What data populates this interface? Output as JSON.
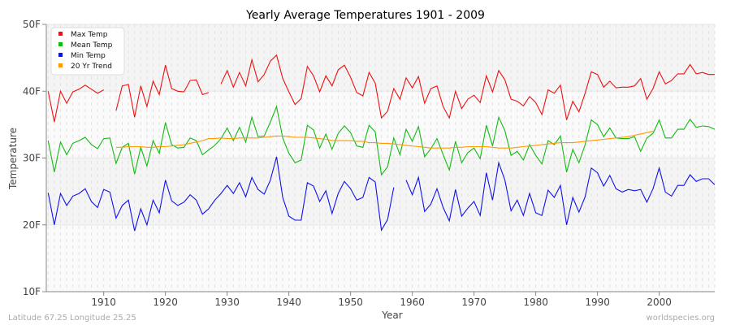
{
  "chart_data": {
    "type": "line",
    "title": "Yearly Average Temperatures 1901 - 2009",
    "xlabel": "Year",
    "ylabel": "Temperature",
    "xlim": [
      1900.7,
      2009
    ],
    "ylim": [
      10,
      50
    ],
    "yticks": [
      {
        "v": 10,
        "label": "10F"
      },
      {
        "v": 20,
        "label": "20F"
      },
      {
        "v": 30,
        "label": "30F"
      },
      {
        "v": 40,
        "label": "40F"
      },
      {
        "v": 50,
        "label": "50F"
      }
    ],
    "xticks": [
      1910,
      1920,
      1930,
      1940,
      1950,
      1960,
      1970,
      1980,
      1990,
      2000
    ],
    "grid": true,
    "legend_position": "top-left",
    "x_start": 1901,
    "series": [
      {
        "name": "Max Temp",
        "color": "#ee1111",
        "values": [
          40.0,
          35.4,
          40.0,
          38.2,
          39.9,
          40.3,
          40.9,
          40.3,
          39.7,
          40.2,
          null,
          37.1,
          40.8,
          41.0,
          36.1,
          40.8,
          37.7,
          41.5,
          39.5,
          43.9,
          40.4,
          40.0,
          39.9,
          41.6,
          41.7,
          39.5,
          39.8,
          null,
          41.1,
          43.1,
          40.6,
          42.8,
          40.8,
          44.7,
          41.4,
          42.5,
          44.5,
          45.4,
          41.9,
          39.9,
          38.0,
          38.9,
          43.7,
          42.3,
          39.9,
          42.3,
          40.8,
          43.2,
          43.9,
          42.1,
          39.8,
          39.3,
          42.8,
          41.2,
          36.0,
          37.0,
          40.4,
          38.8,
          42.0,
          40.5,
          42.2,
          38.2,
          40.4,
          40.8,
          37.7,
          36.0,
          40.0,
          37.4,
          38.8,
          39.4,
          38.3,
          42.3,
          39.9,
          43.1,
          41.7,
          38.8,
          38.5,
          37.8,
          39.2,
          38.3,
          36.5,
          40.2,
          39.7,
          40.9,
          35.7,
          38.5,
          36.9,
          39.7,
          42.9,
          42.5,
          40.6,
          41.5,
          40.5,
          40.6,
          40.6,
          40.8,
          41.9,
          38.8,
          40.4,
          42.9,
          41.1,
          41.6,
          42.6,
          42.6,
          44.0,
          42.6,
          42.8,
          42.5,
          42.5
        ]
      },
      {
        "name": "Mean Temp",
        "color": "#11bb11",
        "values": [
          32.6,
          27.9,
          32.4,
          30.5,
          32.2,
          32.6,
          33.1,
          32.0,
          31.4,
          32.9,
          33.0,
          29.2,
          31.6,
          32.2,
          27.6,
          31.6,
          28.8,
          32.6,
          30.7,
          35.3,
          32.0,
          31.5,
          31.6,
          33.0,
          32.6,
          30.5,
          31.2,
          31.9,
          32.9,
          34.5,
          32.6,
          34.6,
          32.4,
          36.1,
          33.2,
          33.3,
          35.4,
          37.7,
          33.0,
          30.7,
          29.3,
          29.7,
          34.9,
          34.2,
          31.5,
          33.6,
          31.3,
          33.7,
          34.8,
          33.8,
          31.8,
          31.6,
          34.9,
          33.9,
          27.5,
          28.7,
          33.0,
          30.5,
          34.3,
          32.5,
          34.7,
          30.2,
          31.4,
          32.9,
          30.5,
          28.2,
          32.5,
          29.3,
          30.8,
          31.5,
          29.9,
          34.9,
          31.8,
          36.1,
          34.1,
          30.4,
          31.0,
          29.7,
          32.0,
          30.4,
          29.1,
          32.6,
          32.0,
          33.3,
          27.9,
          31.3,
          29.3,
          32.0,
          35.7,
          35.0,
          33.2,
          34.5,
          33.0,
          32.9,
          32.9,
          33.2,
          31.0,
          33.0,
          33.7,
          35.7,
          33.0,
          33.0,
          34.3,
          34.3,
          35.8,
          34.6,
          34.8,
          34.7,
          34.3
        ]
      },
      {
        "name": "Min Temp",
        "color": "#1111ee",
        "values": [
          24.8,
          20.0,
          24.7,
          22.9,
          24.3,
          24.7,
          25.4,
          23.5,
          22.6,
          25.3,
          24.9,
          21.0,
          22.9,
          23.7,
          19.1,
          22.4,
          20.0,
          23.7,
          21.8,
          26.7,
          23.6,
          22.9,
          23.4,
          24.5,
          23.7,
          21.6,
          22.4,
          23.7,
          24.7,
          25.9,
          24.7,
          26.3,
          24.2,
          27.1,
          25.3,
          24.6,
          26.7,
          30.2,
          24.1,
          21.3,
          20.7,
          20.7,
          26.3,
          25.8,
          23.5,
          25.1,
          21.7,
          24.7,
          26.5,
          25.4,
          23.7,
          24.1,
          27.1,
          26.4,
          19.2,
          20.8,
          25.6,
          null,
          26.7,
          24.5,
          27.1,
          22.0,
          23.1,
          25.4,
          22.6,
          20.6,
          25.3,
          21.3,
          22.5,
          23.5,
          21.4,
          27.8,
          23.7,
          29.3,
          26.7,
          22.1,
          23.7,
          21.4,
          24.7,
          21.8,
          21.4,
          25.2,
          24.1,
          25.9,
          20.0,
          24.1,
          21.9,
          24.2,
          28.5,
          27.8,
          25.8,
          27.4,
          25.4,
          24.9,
          25.3,
          25.1,
          25.3,
          23.4,
          25.4,
          28.5,
          24.9,
          24.3,
          25.9,
          25.9,
          27.5,
          26.5,
          26.9,
          26.9,
          26.0
        ]
      },
      {
        "name": "20 Yr Trend",
        "color": "#ff9900",
        "start": 1912,
        "values": [
          31.6,
          31.6,
          31.7,
          31.7,
          31.7,
          31.6,
          31.6,
          31.7,
          31.7,
          31.8,
          31.9,
          32.0,
          32.2,
          32.4,
          32.6,
          32.9,
          32.9,
          33.0,
          32.9,
          32.9,
          33.0,
          33.0,
          33.0,
          33.0,
          33.1,
          33.2,
          33.3,
          33.3,
          33.2,
          33.1,
          33.1,
          33.1,
          33.0,
          32.9,
          32.8,
          32.6,
          32.6,
          32.6,
          32.6,
          32.5,
          32.5,
          32.3,
          32.3,
          32.2,
          32.2,
          32.1,
          32.0,
          31.9,
          31.8,
          31.7,
          31.6,
          31.5,
          31.5,
          31.5,
          31.5,
          31.6,
          31.6,
          31.7,
          31.7,
          31.7,
          31.7,
          31.6,
          31.5,
          31.5,
          31.5,
          31.6,
          31.7,
          31.8,
          31.9,
          32.0,
          32.1,
          32.2,
          32.3,
          32.3,
          32.3,
          32.4,
          32.5,
          32.6,
          32.7,
          32.8,
          32.9,
          33.0,
          33.1,
          33.2,
          33.4,
          33.6,
          33.8,
          34.0
        ]
      }
    ]
  },
  "footer": {
    "location": "Latitude 67.25 Longitude 25.25",
    "site": "worldspecies.org"
  }
}
